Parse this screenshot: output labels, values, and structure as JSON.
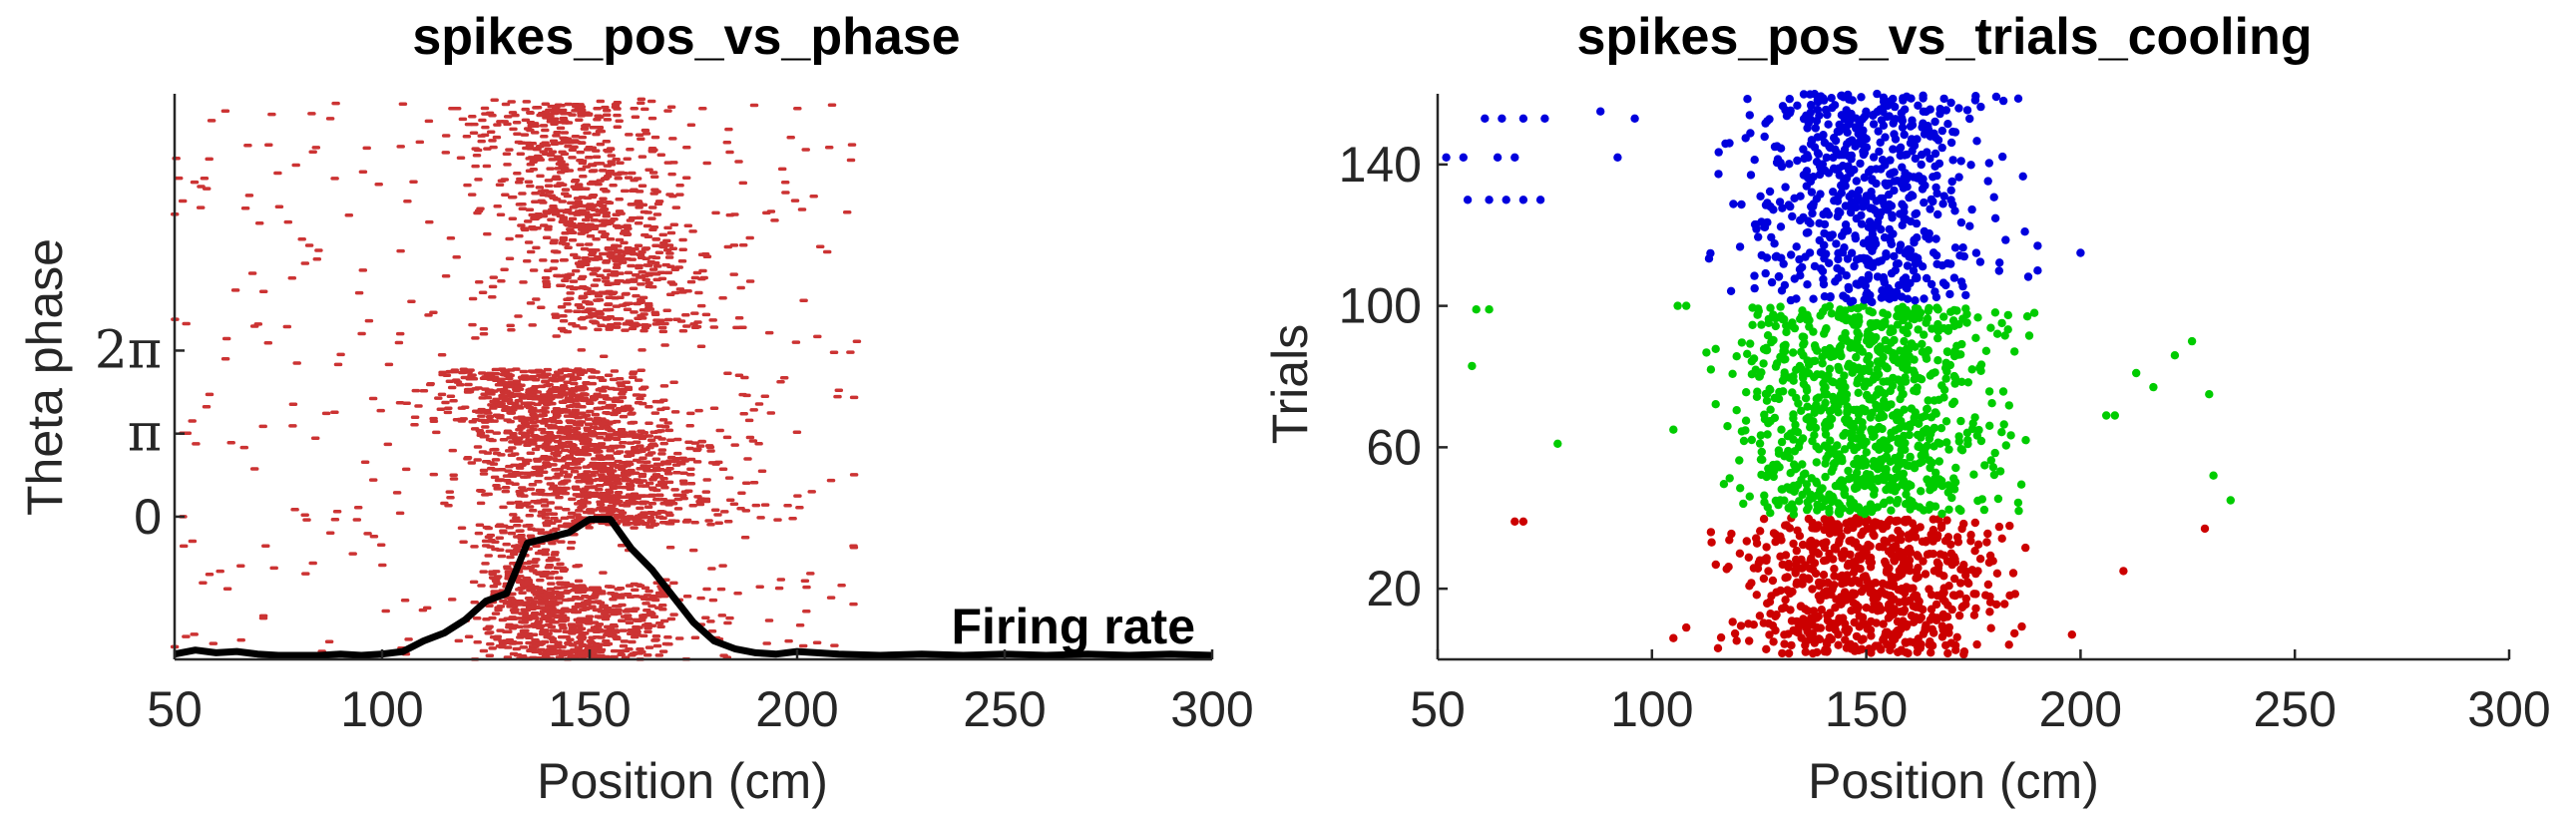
{
  "chart_data": [
    {
      "type": "scatter",
      "title": "spikes_pos_vs_phase",
      "xlabel": "Position (cm)",
      "ylabel": "Theta phase",
      "xlim": [
        50,
        300
      ],
      "ylim": [
        -5.4,
        16.0
      ],
      "x_ticks": [
        50,
        100,
        150,
        200,
        250,
        300
      ],
      "x_tick_labels": [
        "50",
        "100",
        "150",
        "200",
        "250",
        "300"
      ],
      "y_ticks": [
        0,
        3.1416,
        6.2832
      ],
      "y_tick_labels": [
        "0",
        "π",
        "2π"
      ],
      "spike_color": "#cc3333",
      "spike_clusters": [
        {
          "x_center": 150,
          "x_spread": 12,
          "y_min": -5.4,
          "y_max": -2.5,
          "slope": 0,
          "count": 420
        },
        {
          "x_center": 150,
          "x_spread": 11,
          "y_min": 7.0,
          "y_max": 15.8,
          "slope": -2.2,
          "count": 850
        },
        {
          "x_center": 147,
          "x_spread": 13,
          "y_min": -0.3,
          "y_max": 5.6,
          "slope": -3.5,
          "count": 1350
        },
        {
          "x_center": 136,
          "x_spread": 6,
          "y_min": -5.4,
          "y_max": -0.3,
          "slope": 0,
          "count": 350
        }
      ],
      "background_spike_count": 380,
      "firing_rate_line": {
        "label": "Firing rate",
        "color": "#000000",
        "x": [
          50,
          55,
          60,
          65,
          70,
          75,
          80,
          85,
          90,
          95,
          100,
          105,
          110,
          115,
          120,
          125,
          130,
          135,
          140,
          145,
          150,
          155,
          160,
          165,
          170,
          175,
          180,
          185,
          190,
          195,
          200,
          210,
          220,
          230,
          240,
          250,
          260,
          270,
          280,
          290,
          300
        ],
        "y": [
          -5.2,
          -5.05,
          -5.15,
          -5.1,
          -5.2,
          -5.25,
          -5.25,
          -5.25,
          -5.2,
          -5.25,
          -5.2,
          -5.1,
          -4.7,
          -4.4,
          -3.9,
          -3.2,
          -2.9,
          -1.0,
          -0.8,
          -0.6,
          -0.1,
          -0.1,
          -1.2,
          -2.0,
          -3.0,
          -4.0,
          -4.7,
          -5.0,
          -5.15,
          -5.2,
          -5.1,
          -5.2,
          -5.25,
          -5.2,
          -5.25,
          -5.2,
          -5.25,
          -5.2,
          -5.25,
          -5.2,
          -5.25
        ]
      }
    },
    {
      "type": "scatter",
      "title": "spikes_pos_vs_trials_cooling",
      "xlabel": "Position (cm)",
      "ylabel": "Trials",
      "xlim": [
        50,
        300
      ],
      "ylim": [
        0,
        160
      ],
      "x_ticks": [
        50,
        100,
        150,
        200,
        250,
        300
      ],
      "x_tick_labels": [
        "50",
        "100",
        "150",
        "200",
        "250",
        "300"
      ],
      "y_ticks": [
        20,
        60,
        100,
        140
      ],
      "y_tick_labels": [
        "20",
        "60",
        "100",
        "140"
      ],
      "series": [
        {
          "color": "#cc0000",
          "trial_range": [
            1,
            40
          ],
          "x_center": 150,
          "x_spread": 15,
          "count": 700,
          "outliers": [
            [
              68,
              39
            ],
            [
              70,
              39
            ],
            [
              229,
              37
            ],
            [
              210,
              25
            ],
            [
              198,
              7
            ],
            [
              105,
              6
            ],
            [
              108,
              9
            ]
          ]
        },
        {
          "color": "#00cc00",
          "trial_range": [
            41,
            100
          ],
          "x_center": 150,
          "x_spread": 15,
          "count": 950,
          "outliers": [
            [
              59,
              99
            ],
            [
              62,
              99
            ],
            [
              58,
              83
            ],
            [
              78,
              61
            ],
            [
              106,
              100
            ],
            [
              108,
              100
            ],
            [
              206,
              69
            ],
            [
              208,
              69
            ],
            [
              213,
              81
            ],
            [
              217,
              77
            ],
            [
              222,
              86
            ],
            [
              226,
              90
            ],
            [
              230,
              75
            ],
            [
              235,
              45
            ],
            [
              231,
              52
            ],
            [
              105,
              65
            ]
          ]
        },
        {
          "color": "#0000dd",
          "trial_range": [
            101,
            160
          ],
          "x_center": 150,
          "x_spread": 13,
          "count": 650,
          "outliers": [
            [
              52,
              142
            ],
            [
              56,
              142
            ],
            [
              64,
              142
            ],
            [
              68,
              142
            ],
            [
              57,
              130
            ],
            [
              62,
              130
            ],
            [
              66,
              130
            ],
            [
              70,
              130
            ],
            [
              74,
              130
            ],
            [
              61,
              153
            ],
            [
              65,
              153
            ],
            [
              70,
              153
            ],
            [
              75,
              153
            ],
            [
              88,
              155
            ],
            [
              92,
              142
            ],
            [
              96,
              153
            ],
            [
              182,
              158
            ],
            [
              187,
              121
            ],
            [
              190,
              117
            ],
            [
              200,
              115
            ],
            [
              190,
              110
            ]
          ]
        }
      ]
    }
  ]
}
